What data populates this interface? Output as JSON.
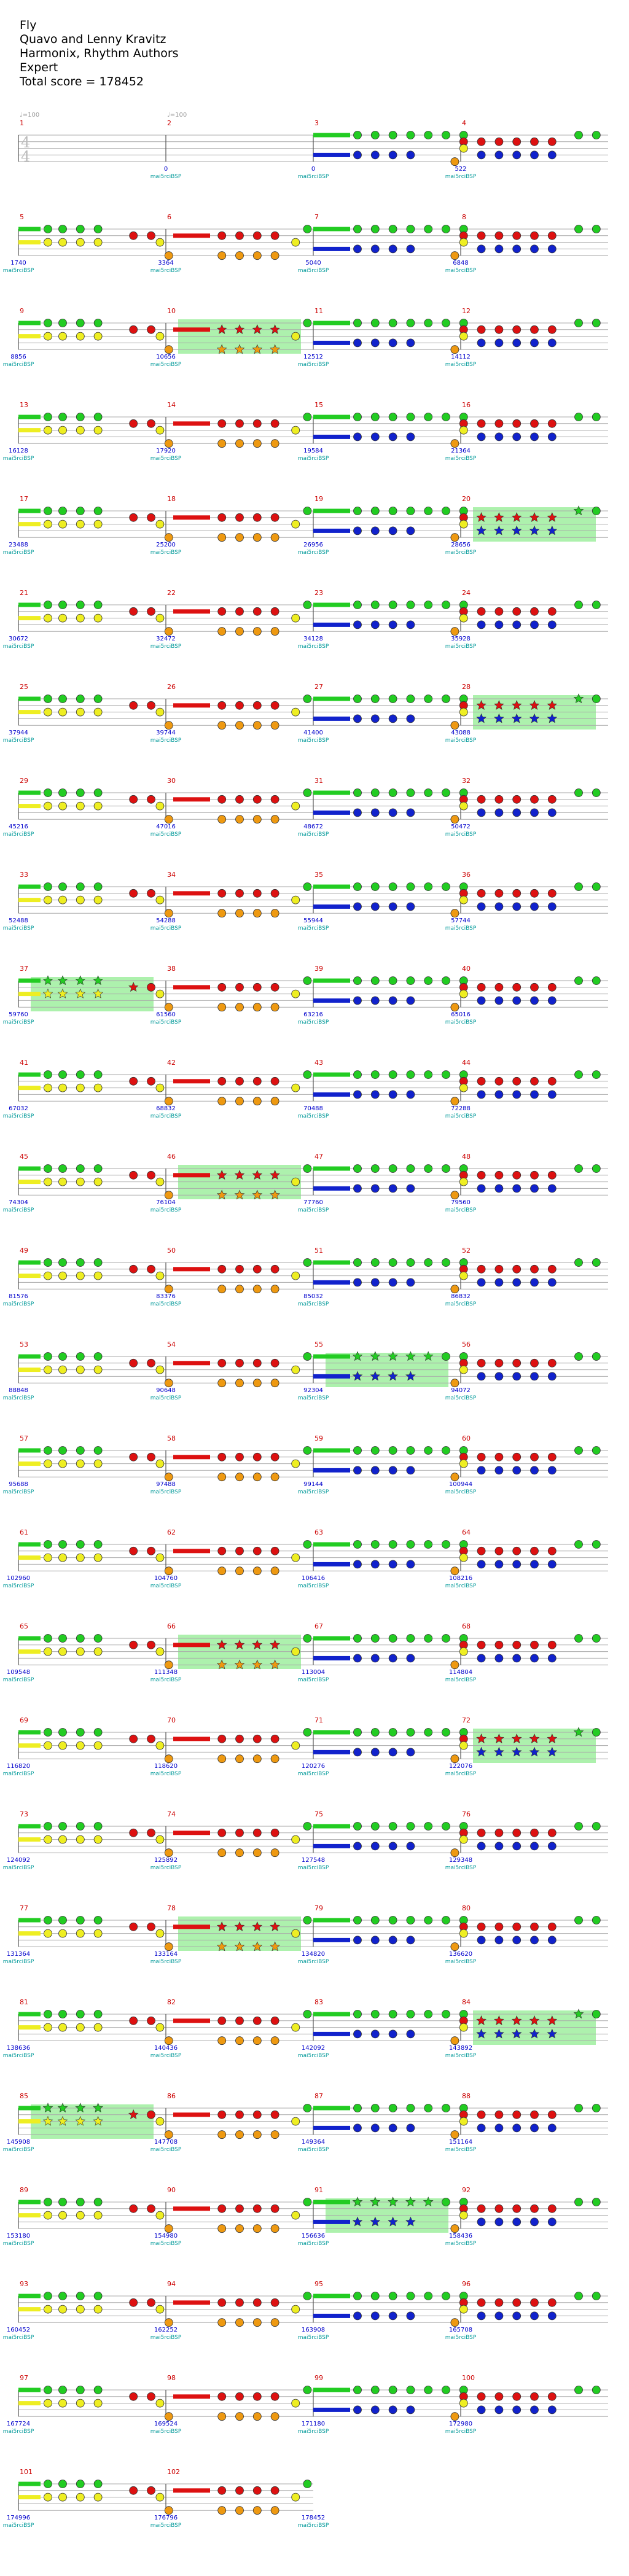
{
  "header": {
    "song_title": "Fly",
    "artist": "Quavo and Lenny Kravitz",
    "charter": "Harmonix, Rhythm Authors",
    "difficulty": "Expert",
    "total_score_label": "Total score = 178452"
  },
  "chart_data": {
    "type": "note-chart",
    "tempo_marker": "♩=100",
    "time_signature": [
      "4",
      "4"
    ],
    "tracker_label": "mai5rciBSP",
    "colors": {
      "green": "#22cc22",
      "red": "#dd1111",
      "yellow": "#eeee22",
      "blue": "#1122cc",
      "orange": "#ee9911",
      "measure_number": "#cc0000",
      "score": "#0000cc",
      "tracker": "#009999",
      "star_power": "#99ee99",
      "staff_line": "#aaaaaa"
    },
    "pattern_order": [
      "green",
      "red",
      "yellow",
      "blue",
      "orange"
    ],
    "measures": [
      {
        "n": 1,
        "pattern": "intro",
        "score": ""
      },
      {
        "n": 2,
        "pattern": "intro",
        "score": "0"
      },
      {
        "n": 3,
        "pattern": "A",
        "score": "0"
      },
      {
        "n": 4,
        "pattern": "B",
        "score": "522"
      },
      {
        "n": 5,
        "pattern": "C",
        "score": "1740"
      },
      {
        "n": 6,
        "pattern": "D",
        "score": "3364"
      },
      {
        "n": 7,
        "pattern": "A",
        "score": "5040"
      },
      {
        "n": 8,
        "pattern": "B",
        "score": "6848"
      },
      {
        "n": 9,
        "pattern": "C",
        "score": "8856"
      },
      {
        "n": 10,
        "pattern": "D",
        "score": "10656",
        "sp": true
      },
      {
        "n": 11,
        "pattern": "A",
        "score": "12512"
      },
      {
        "n": 12,
        "pattern": "B",
        "score": "14112"
      },
      {
        "n": 13,
        "pattern": "C",
        "score": "16128"
      },
      {
        "n": 14,
        "pattern": "D",
        "score": "17920"
      },
      {
        "n": 15,
        "pattern": "A",
        "score": "19584"
      },
      {
        "n": 16,
        "pattern": "B",
        "score": "21364"
      },
      {
        "n": 17,
        "pattern": "C",
        "score": "23488"
      },
      {
        "n": 18,
        "pattern": "D",
        "score": "25200"
      },
      {
        "n": 19,
        "pattern": "A",
        "score": "26956"
      },
      {
        "n": 20,
        "pattern": "B",
        "score": "28656",
        "sp": true
      },
      {
        "n": 21,
        "pattern": "C",
        "score": "30672"
      },
      {
        "n": 22,
        "pattern": "D",
        "score": "32472"
      },
      {
        "n": 23,
        "pattern": "A",
        "score": "34128"
      },
      {
        "n": 24,
        "pattern": "B",
        "score": "35928"
      },
      {
        "n": 25,
        "pattern": "C",
        "score": "37944"
      },
      {
        "n": 26,
        "pattern": "D",
        "score": "39744"
      },
      {
        "n": 27,
        "pattern": "A",
        "score": "41400"
      },
      {
        "n": 28,
        "pattern": "B",
        "score": "43088",
        "sp": true
      },
      {
        "n": 29,
        "pattern": "C",
        "score": "45216"
      },
      {
        "n": 30,
        "pattern": "D",
        "score": "47016"
      },
      {
        "n": 31,
        "pattern": "A",
        "score": "48672"
      },
      {
        "n": 32,
        "pattern": "B",
        "score": "50472"
      },
      {
        "n": 33,
        "pattern": "C",
        "score": "52488"
      },
      {
        "n": 34,
        "pattern": "D",
        "score": "54288"
      },
      {
        "n": 35,
        "pattern": "A",
        "score": "55944"
      },
      {
        "n": 36,
        "pattern": "B",
        "score": "57744"
      },
      {
        "n": 37,
        "pattern": "C",
        "score": "59760",
        "sp": true
      },
      {
        "n": 38,
        "pattern": "D",
        "score": "61560"
      },
      {
        "n": 39,
        "pattern": "A",
        "score": "63216"
      },
      {
        "n": 40,
        "pattern": "B",
        "score": "65016"
      },
      {
        "n": 41,
        "pattern": "C",
        "score": "67032"
      },
      {
        "n": 42,
        "pattern": "D",
        "score": "68832"
      },
      {
        "n": 43,
        "pattern": "A",
        "score": "70488"
      },
      {
        "n": 44,
        "pattern": "B",
        "score": "72288"
      },
      {
        "n": 45,
        "pattern": "C",
        "score": "74304"
      },
      {
        "n": 46,
        "pattern": "D",
        "score": "76104",
        "sp": true
      },
      {
        "n": 47,
        "pattern": "A",
        "score": "77760"
      },
      {
        "n": 48,
        "pattern": "B",
        "score": "79560"
      },
      {
        "n": 49,
        "pattern": "C",
        "score": "81576"
      },
      {
        "n": 50,
        "pattern": "D",
        "score": "83376"
      },
      {
        "n": 51,
        "pattern": "A",
        "score": "85032"
      },
      {
        "n": 52,
        "pattern": "B",
        "score": "86832"
      },
      {
        "n": 53,
        "pattern": "C",
        "score": "88848"
      },
      {
        "n": 54,
        "pattern": "D",
        "score": "90648"
      },
      {
        "n": 55,
        "pattern": "A",
        "score": "92304",
        "sp": true
      },
      {
        "n": 56,
        "pattern": "B",
        "score": "94072"
      },
      {
        "n": 57,
        "pattern": "C",
        "score": "95688"
      },
      {
        "n": 58,
        "pattern": "D",
        "score": "97488"
      },
      {
        "n": 59,
        "pattern": "A",
        "score": "99144"
      },
      {
        "n": 60,
        "pattern": "B",
        "score": "100944"
      },
      {
        "n": 61,
        "pattern": "C",
        "score": "102960"
      },
      {
        "n": 62,
        "pattern": "D",
        "score": "104760"
      },
      {
        "n": 63,
        "pattern": "A",
        "score": "106416"
      },
      {
        "n": 64,
        "pattern": "B",
        "score": "108216"
      },
      {
        "n": 65,
        "pattern": "C",
        "score": "109548"
      },
      {
        "n": 66,
        "pattern": "D",
        "score": "111348",
        "sp": true
      },
      {
        "n": 67,
        "pattern": "A",
        "score": "113004"
      },
      {
        "n": 68,
        "pattern": "B",
        "score": "114804"
      },
      {
        "n": 69,
        "pattern": "C",
        "score": "116820"
      },
      {
        "n": 70,
        "pattern": "D",
        "score": "118620"
      },
      {
        "n": 71,
        "pattern": "A",
        "score": "120276"
      },
      {
        "n": 72,
        "pattern": "B",
        "score": "122076",
        "sp": true
      },
      {
        "n": 73,
        "pattern": "C",
        "score": "124092"
      },
      {
        "n": 74,
        "pattern": "D",
        "score": "125892"
      },
      {
        "n": 75,
        "pattern": "A",
        "score": "127548"
      },
      {
        "n": 76,
        "pattern": "B",
        "score": "129348"
      },
      {
        "n": 77,
        "pattern": "C",
        "score": "131364"
      },
      {
        "n": 78,
        "pattern": "D",
        "score": "133164",
        "sp": true
      },
      {
        "n": 79,
        "pattern": "A",
        "score": "134820"
      },
      {
        "n": 80,
        "pattern": "B",
        "score": "136620"
      },
      {
        "n": 81,
        "pattern": "C",
        "score": "138636"
      },
      {
        "n": 82,
        "pattern": "D",
        "score": "140436"
      },
      {
        "n": 83,
        "pattern": "A",
        "score": "142092"
      },
      {
        "n": 84,
        "pattern": "B",
        "score": "143892",
        "sp": true
      },
      {
        "n": 85,
        "pattern": "C",
        "score": "145908",
        "sp": true
      },
      {
        "n": 86,
        "pattern": "D",
        "score": "147708"
      },
      {
        "n": 87,
        "pattern": "A",
        "score": "149364"
      },
      {
        "n": 88,
        "pattern": "B",
        "score": "151164"
      },
      {
        "n": 89,
        "pattern": "C",
        "score": "153180"
      },
      {
        "n": 90,
        "pattern": "D",
        "score": "154980"
      },
      {
        "n": 91,
        "pattern": "A",
        "score": "156636",
        "sp": true
      },
      {
        "n": 92,
        "pattern": "B",
        "score": "158436"
      },
      {
        "n": 93,
        "pattern": "C",
        "score": "160452"
      },
      {
        "n": 94,
        "pattern": "D",
        "score": "162252"
      },
      {
        "n": 95,
        "pattern": "A",
        "score": "163908"
      },
      {
        "n": 96,
        "pattern": "B",
        "score": "165708"
      },
      {
        "n": 97,
        "pattern": "C",
        "score": "167724"
      },
      {
        "n": 98,
        "pattern": "D",
        "score": "169524"
      },
      {
        "n": 99,
        "pattern": "A",
        "score": "171180"
      },
      {
        "n": 100,
        "pattern": "B",
        "score": "172980"
      },
      {
        "n": 101,
        "pattern": "C",
        "score": "174996"
      },
      {
        "n": 102,
        "pattern": "D",
        "score": "176796"
      },
      {
        "n": "",
        "pattern": "end",
        "score": "178452"
      }
    ]
  }
}
